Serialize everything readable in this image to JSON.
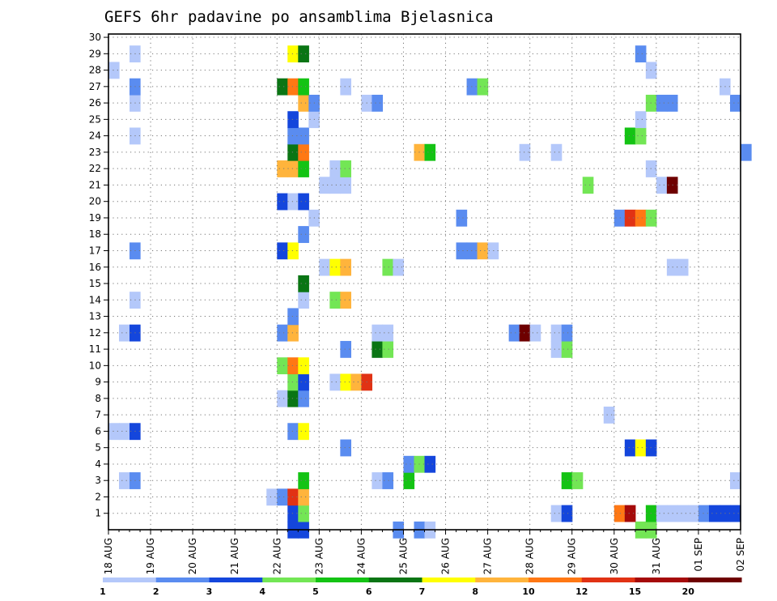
{
  "chart_data": {
    "type": "heatmap",
    "title": "GEFS 6hr padavine po ansamblima Bjelasnica",
    "xlabel": "",
    "ylabel": "",
    "x_ticks": [
      "18 AUG",
      "19 AUG",
      "20 AUG",
      "21 AUG",
      "22 AUG",
      "23 AUG",
      "24 AUG",
      "25 AUG",
      "26 AUG",
      "27 AUG",
      "28 AUG",
      "29 AUG",
      "30 AUG",
      "31 AUG",
      "01 SEP",
      "02 SEP"
    ],
    "y_ticks": [
      1,
      2,
      3,
      4,
      5,
      6,
      7,
      8,
      9,
      10,
      11,
      12,
      13,
      14,
      15,
      16,
      17,
      18,
      19,
      20,
      21,
      22,
      23,
      24,
      25,
      26,
      27,
      28,
      29,
      30
    ],
    "x_range_days": [
      0,
      15
    ],
    "y_range": [
      0,
      30
    ],
    "grid": true,
    "legend_placement": "bottom",
    "legend": {
      "labels": [
        "1",
        "2",
        "3",
        "4",
        "5",
        "6",
        "7",
        "8",
        "10",
        "12",
        "15",
        "20"
      ],
      "colors": [
        "#b4c8fa",
        "#5a8cf0",
        "#1446dc",
        "#73e655",
        "#14c314",
        "#0a7514",
        "#ffff00",
        "#ffb43c",
        "#ff7814",
        "#e13214",
        "#a50a0a",
        "#6e0000"
      ]
    },
    "color_scale": {
      "1": "#b4c8fa",
      "2": "#5a8cf0",
      "3": "#1446dc",
      "4": "#73e655",
      "5": "#14c314",
      "6": "#0a7514",
      "7": "#ffff00",
      "8": "#ffb43c",
      "10": "#ff7814",
      "12": "#e13214",
      "15": "#a50a0a",
      "20": "#6e0000"
    },
    "cells": [
      {
        "m": 0,
        "d": 4.25,
        "v": 3
      },
      {
        "m": 0,
        "d": 4.5,
        "v": 3
      },
      {
        "m": 0,
        "d": 6.75,
        "v": 2
      },
      {
        "m": 0,
        "d": 7.25,
        "v": 2
      },
      {
        "m": 0,
        "d": 7.5,
        "v": 1
      },
      {
        "m": 0,
        "d": 12.5,
        "v": 4
      },
      {
        "m": 0,
        "d": 12.75,
        "v": 4
      },
      {
        "m": 1,
        "d": 4.25,
        "v": 3
      },
      {
        "m": 1,
        "d": 4.5,
        "v": 4
      },
      {
        "m": 1,
        "d": 10.5,
        "v": 1
      },
      {
        "m": 1,
        "d": 10.75,
        "v": 3
      },
      {
        "m": 1,
        "d": 12.0,
        "v": 10
      },
      {
        "m": 1,
        "d": 12.25,
        "v": 15
      },
      {
        "m": 1,
        "d": 12.75,
        "v": 5
      },
      {
        "m": 1,
        "d": 13.0,
        "v": 1
      },
      {
        "m": 1,
        "d": 13.25,
        "v": 1
      },
      {
        "m": 1,
        "d": 13.5,
        "v": 1
      },
      {
        "m": 1,
        "d": 13.75,
        "v": 1
      },
      {
        "m": 1,
        "d": 14.0,
        "v": 2
      },
      {
        "m": 1,
        "d": 14.25,
        "v": 3
      },
      {
        "m": 1,
        "d": 14.5,
        "v": 3
      },
      {
        "m": 1,
        "d": 14.75,
        "v": 3
      },
      {
        "m": 2,
        "d": 3.75,
        "v": 1
      },
      {
        "m": 2,
        "d": 4.0,
        "v": 2
      },
      {
        "m": 2,
        "d": 4.25,
        "v": 12
      },
      {
        "m": 2,
        "d": 4.5,
        "v": 8
      },
      {
        "m": 3,
        "d": 0.25,
        "v": 1
      },
      {
        "m": 3,
        "d": 0.5,
        "v": 2
      },
      {
        "m": 3,
        "d": 4.5,
        "v": 5
      },
      {
        "m": 3,
        "d": 6.25,
        "v": 1
      },
      {
        "m": 3,
        "d": 6.5,
        "v": 2
      },
      {
        "m": 3,
        "d": 7.0,
        "v": 5
      },
      {
        "m": 3,
        "d": 10.75,
        "v": 5
      },
      {
        "m": 3,
        "d": 11.0,
        "v": 4
      },
      {
        "m": 3,
        "d": 14.75,
        "v": 1
      },
      {
        "m": 4,
        "d": 7.0,
        "v": 2
      },
      {
        "m": 4,
        "d": 7.25,
        "v": 4
      },
      {
        "m": 4,
        "d": 7.5,
        "v": 3
      },
      {
        "m": 5,
        "d": 5.5,
        "v": 2
      },
      {
        "m": 5,
        "d": 12.25,
        "v": 3
      },
      {
        "m": 5,
        "d": 12.5,
        "v": 7
      },
      {
        "m": 5,
        "d": 12.75,
        "v": 3
      },
      {
        "m": 6,
        "d": 0.0,
        "v": 1
      },
      {
        "m": 6,
        "d": 0.25,
        "v": 1
      },
      {
        "m": 6,
        "d": 0.5,
        "v": 3
      },
      {
        "m": 6,
        "d": 4.25,
        "v": 2
      },
      {
        "m": 6,
        "d": 4.5,
        "v": 7
      },
      {
        "m": 7,
        "d": 11.75,
        "v": 1
      },
      {
        "m": 8,
        "d": 4.0,
        "v": 1
      },
      {
        "m": 8,
        "d": 4.25,
        "v": 6
      },
      {
        "m": 8,
        "d": 4.5,
        "v": 2
      },
      {
        "m": 9,
        "d": 4.25,
        "v": 4
      },
      {
        "m": 9,
        "d": 4.5,
        "v": 3
      },
      {
        "m": 9,
        "d": 5.25,
        "v": 1
      },
      {
        "m": 9,
        "d": 5.5,
        "v": 7
      },
      {
        "m": 9,
        "d": 5.75,
        "v": 8
      },
      {
        "m": 9,
        "d": 6.0,
        "v": 12
      },
      {
        "m": 10,
        "d": 4.0,
        "v": 4
      },
      {
        "m": 10,
        "d": 4.25,
        "v": 10
      },
      {
        "m": 10,
        "d": 4.5,
        "v": 7
      },
      {
        "m": 11,
        "d": 5.5,
        "v": 2
      },
      {
        "m": 11,
        "d": 6.25,
        "v": 6
      },
      {
        "m": 11,
        "d": 6.5,
        "v": 4
      },
      {
        "m": 11,
        "d": 10.5,
        "v": 1
      },
      {
        "m": 11,
        "d": 10.75,
        "v": 4
      },
      {
        "m": 12,
        "d": 0.25,
        "v": 1
      },
      {
        "m": 12,
        "d": 0.5,
        "v": 3
      },
      {
        "m": 12,
        "d": 4.0,
        "v": 2
      },
      {
        "m": 12,
        "d": 4.25,
        "v": 8
      },
      {
        "m": 12,
        "d": 6.25,
        "v": 1
      },
      {
        "m": 12,
        "d": 6.5,
        "v": 1
      },
      {
        "m": 12,
        "d": 9.5,
        "v": 2
      },
      {
        "m": 12,
        "d": 9.75,
        "v": 20
      },
      {
        "m": 12,
        "d": 10.0,
        "v": 1
      },
      {
        "m": 12,
        "d": 10.5,
        "v": 1
      },
      {
        "m": 12,
        "d": 10.75,
        "v": 2
      },
      {
        "m": 13,
        "d": 4.25,
        "v": 2
      },
      {
        "m": 14,
        "d": 0.5,
        "v": 1
      },
      {
        "m": 14,
        "d": 4.5,
        "v": 1
      },
      {
        "m": 14,
        "d": 5.25,
        "v": 4
      },
      {
        "m": 14,
        "d": 5.5,
        "v": 8
      },
      {
        "m": 15,
        "d": 4.5,
        "v": 6
      },
      {
        "m": 16,
        "d": 5.0,
        "v": 1
      },
      {
        "m": 16,
        "d": 5.25,
        "v": 7
      },
      {
        "m": 16,
        "d": 5.5,
        "v": 8
      },
      {
        "m": 16,
        "d": 6.5,
        "v": 4
      },
      {
        "m": 16,
        "d": 6.75,
        "v": 1
      },
      {
        "m": 16,
        "d": 13.25,
        "v": 1
      },
      {
        "m": 16,
        "d": 13.5,
        "v": 1
      },
      {
        "m": 17,
        "d": 0.5,
        "v": 2
      },
      {
        "m": 17,
        "d": 4.0,
        "v": 3
      },
      {
        "m": 17,
        "d": 4.25,
        "v": 7
      },
      {
        "m": 17,
        "d": 8.25,
        "v": 2
      },
      {
        "m": 17,
        "d": 8.5,
        "v": 2
      },
      {
        "m": 17,
        "d": 8.75,
        "v": 8
      },
      {
        "m": 17,
        "d": 9.0,
        "v": 1
      },
      {
        "m": 18,
        "d": 4.5,
        "v": 2
      },
      {
        "m": 19,
        "d": 4.75,
        "v": 1
      },
      {
        "m": 19,
        "d": 8.25,
        "v": 2
      },
      {
        "m": 19,
        "d": 12.0,
        "v": 2
      },
      {
        "m": 19,
        "d": 12.25,
        "v": 12
      },
      {
        "m": 19,
        "d": 12.5,
        "v": 10
      },
      {
        "m": 19,
        "d": 12.75,
        "v": 4
      },
      {
        "m": 20,
        "d": 4.0,
        "v": 3
      },
      {
        "m": 20,
        "d": 4.25,
        "v": 1
      },
      {
        "m": 20,
        "d": 4.5,
        "v": 3
      },
      {
        "m": 21,
        "d": 5.0,
        "v": 1
      },
      {
        "m": 21,
        "d": 5.25,
        "v": 1
      },
      {
        "m": 21,
        "d": 5.5,
        "v": 1
      },
      {
        "m": 21,
        "d": 11.25,
        "v": 4
      },
      {
        "m": 21,
        "d": 13.0,
        "v": 1
      },
      {
        "m": 21,
        "d": 13.25,
        "v": 20
      },
      {
        "m": 22,
        "d": 4.0,
        "v": 8
      },
      {
        "m": 22,
        "d": 4.25,
        "v": 8
      },
      {
        "m": 22,
        "d": 4.5,
        "v": 5
      },
      {
        "m": 22,
        "d": 5.25,
        "v": 1
      },
      {
        "m": 22,
        "d": 5.5,
        "v": 4
      },
      {
        "m": 22,
        "d": 12.75,
        "v": 1
      },
      {
        "m": 23,
        "d": 4.25,
        "v": 6
      },
      {
        "m": 23,
        "d": 4.5,
        "v": 10
      },
      {
        "m": 23,
        "d": 7.25,
        "v": 8
      },
      {
        "m": 23,
        "d": 7.5,
        "v": 5
      },
      {
        "m": 23,
        "d": 9.75,
        "v": 1
      },
      {
        "m": 23,
        "d": 10.5,
        "v": 1
      },
      {
        "m": 23,
        "d": 15.0,
        "v": 2
      },
      {
        "m": 24,
        "d": 0.5,
        "v": 1
      },
      {
        "m": 24,
        "d": 4.25,
        "v": 2
      },
      {
        "m": 24,
        "d": 4.5,
        "v": 2
      },
      {
        "m": 24,
        "d": 12.25,
        "v": 5
      },
      {
        "m": 24,
        "d": 12.5,
        "v": 4
      },
      {
        "m": 25,
        "d": 4.25,
        "v": 3
      },
      {
        "m": 25,
        "d": 4.75,
        "v": 1
      },
      {
        "m": 25,
        "d": 12.5,
        "v": 1
      },
      {
        "m": 26,
        "d": 0.5,
        "v": 1
      },
      {
        "m": 26,
        "d": 4.5,
        "v": 8
      },
      {
        "m": 26,
        "d": 4.75,
        "v": 2
      },
      {
        "m": 26,
        "d": 6.0,
        "v": 1
      },
      {
        "m": 26,
        "d": 6.25,
        "v": 2
      },
      {
        "m": 26,
        "d": 12.75,
        "v": 4
      },
      {
        "m": 26,
        "d": 13.0,
        "v": 2
      },
      {
        "m": 26,
        "d": 13.25,
        "v": 2
      },
      {
        "m": 26,
        "d": 14.75,
        "v": 2
      },
      {
        "m": 27,
        "d": 0.5,
        "v": 2
      },
      {
        "m": 27,
        "d": 4.0,
        "v": 6
      },
      {
        "m": 27,
        "d": 4.25,
        "v": 10
      },
      {
        "m": 27,
        "d": 4.5,
        "v": 5
      },
      {
        "m": 27,
        "d": 5.5,
        "v": 1
      },
      {
        "m": 27,
        "d": 8.5,
        "v": 2
      },
      {
        "m": 27,
        "d": 8.75,
        "v": 4
      },
      {
        "m": 27,
        "d": 14.5,
        "v": 1
      },
      {
        "m": 28,
        "d": 0.0,
        "v": 1
      },
      {
        "m": 28,
        "d": 12.75,
        "v": 1
      },
      {
        "m": 29,
        "d": 0.5,
        "v": 1
      },
      {
        "m": 29,
        "d": 4.25,
        "v": 7
      },
      {
        "m": 29,
        "d": 4.5,
        "v": 6
      },
      {
        "m": 29,
        "d": 12.5,
        "v": 2
      }
    ]
  }
}
